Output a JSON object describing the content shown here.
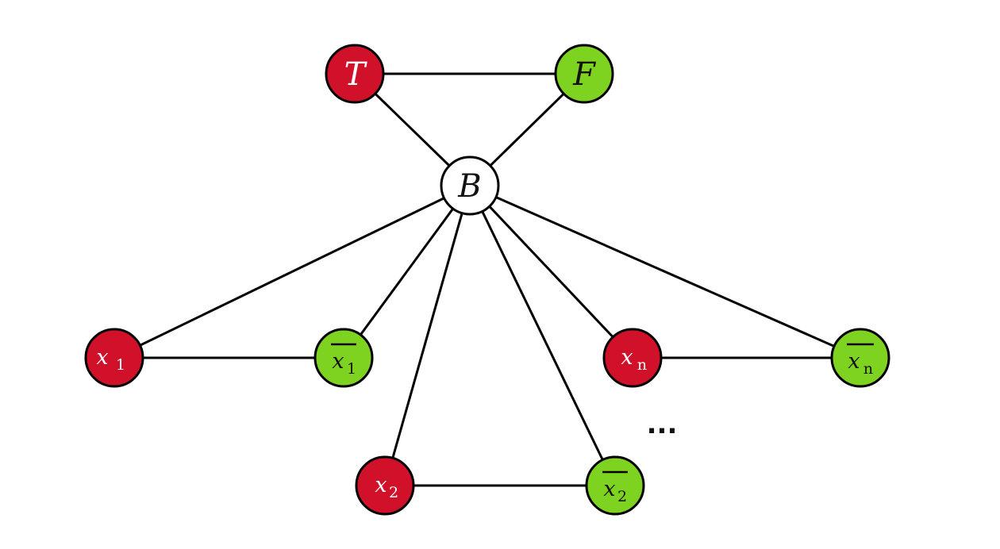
{
  "colors": {
    "true_node": "#d1102a",
    "false_node": "#7ed321",
    "base_node": "#ffffff",
    "stroke": "#000000"
  },
  "nodes": {
    "T": {
      "label": "T"
    },
    "F": {
      "label": "F"
    },
    "B": {
      "label": "B"
    },
    "x1": {
      "var": "x",
      "sub": "1"
    },
    "nx1": {
      "var": "x",
      "sub": "1"
    },
    "x2": {
      "var": "x",
      "sub": "2"
    },
    "nx2": {
      "var": "x",
      "sub": "2"
    },
    "xn": {
      "var": "x",
      "sub": "n"
    },
    "nxn": {
      "var": "x",
      "sub": "n"
    }
  },
  "ellipsis": "..."
}
